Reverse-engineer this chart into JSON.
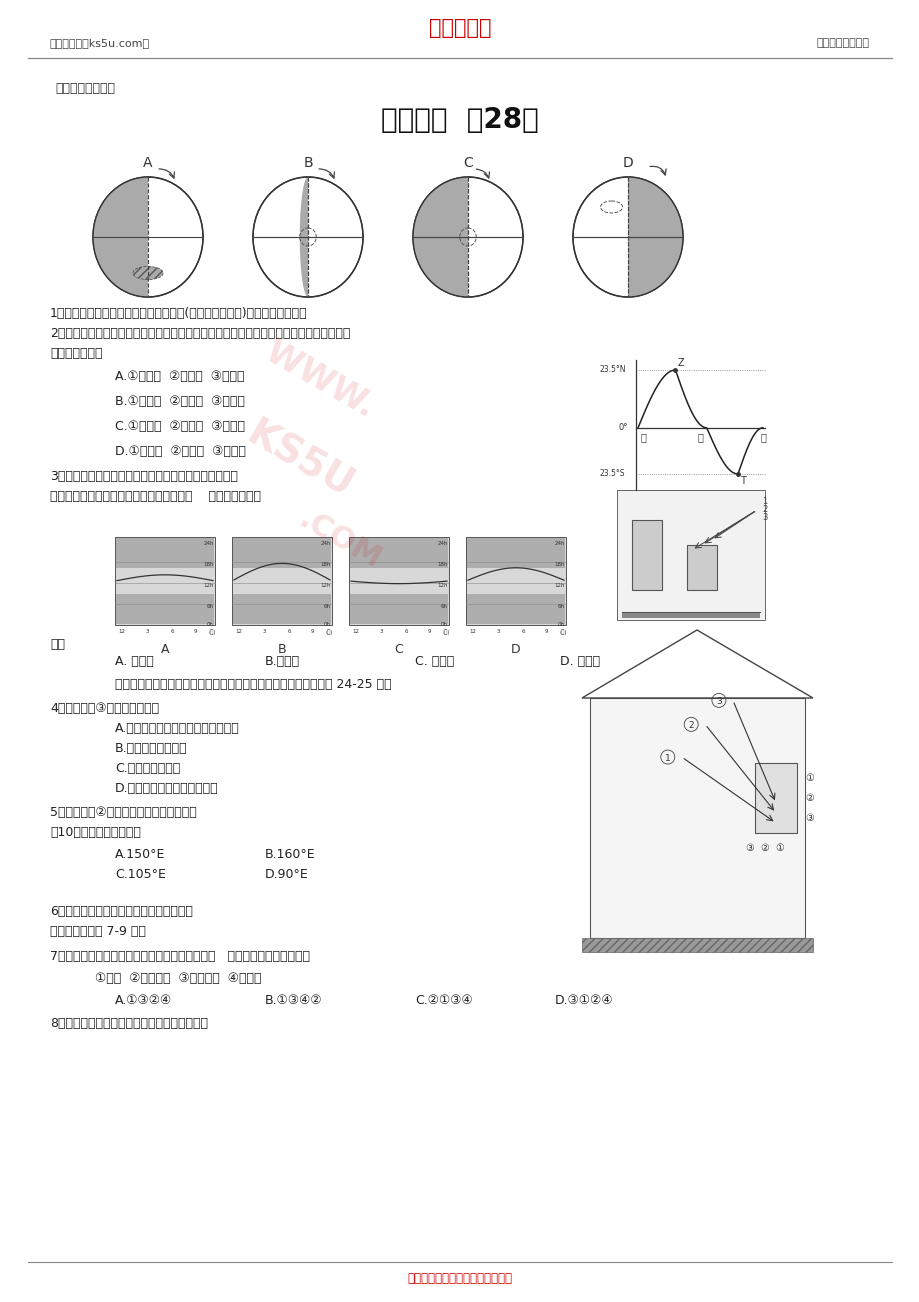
{
  "page_width": 9.2,
  "page_height": 13.02,
  "bg_color": "#ffffff",
  "header_left": "高考资源网（ks5u.com）",
  "header_center": "高考资源网",
  "header_center_color": "#cc0000",
  "header_right": "您身边的高考专家",
  "subtitle_text": "地理基础知识复习",
  "title_text": "地理精练  （28）",
  "footer_text": "高考资源网版权所有，侵权必究！",
  "footer_color": "#cc0000",
  "q1": "1、下面四幅昼夜长短的季节变化示意图(阴影部分为黑夜)中，表示昆明的是",
  "q2_line1": "2、右图是北半球某城市在春分、夏至和冬至三天正午太阳高度变化示意图，指出下列排序",
  "q2_line2": "与图中相符的是",
  "q2_A": "A.①夏至日  ②春分日  ③冬至日",
  "q2_B": "B.①春分日  ②冬至日  ③夏至日",
  "q2_C": "C.①冬至日  ②春分日  ③夏至日",
  "q2_D": "D.①冬至日  ②夏至日  ③春分日",
  "q3_line1": "3、北京某中学，要在某楼房北面盖一座新教学楼，欲使",
  "q3_line2": "新楼底层全年太阳光线不被遮挡，应考虑（    ）的正午太阳高",
  "q3_end": "度。",
  "q3_A": "A. 春分日",
  "q3_B": "B.夏至日",
  "q3_C": "C. 秋分日",
  "q3_D": "D. 冬至日",
  "intro45": "下图为我国某地朝南窗户二分二至日正午太阳光入射图。据图完成 24-25 小题",
  "q4": "4、当阳光如③所示射入窗户时",
  "q4_A": "A.我国恰好是一年中气温最高的月份",
  "q4_B": "B.北京正值昼长夜短",
  "q4_C": "C.北极圈出现极昼",
  "q4_D": "D.北半球纬度越高，白昼越短",
  "q5": "5、当阳光如②所示射入窗户时，北京时间",
  "q5_line2": "为10点，则该地的经度是",
  "q5_A": "A.150°E",
  "q5_B": "B.160°E",
  "q5_C": "C.105°E",
  "q5_D": "D.90°E",
  "q6": "6、下面四幅图中，表示北半球冬至日的是",
  "q6_note": "该右图，回答第 7-9 题。",
  "q7": "7、太阳直射点位于乙点时，下午纬带正午太阳高   度由大到小排列正确的是",
  "q7_opts": "①赤道  ②南回归线  ③北回归线  ④南极圈",
  "q7_A": "A.①③②④",
  "q7_B": "B.①③④②",
  "q7_C": "C.②①③④",
  "q7_D": "D.③①②④",
  "q8": "8、太阳直射点位于丁附近时，浙江省各地处于"
}
